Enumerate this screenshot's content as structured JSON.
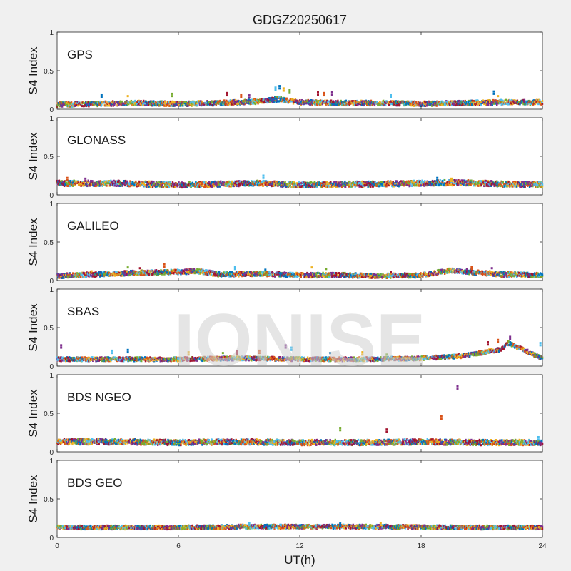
{
  "figure": {
    "title": "GDGZ20250617",
    "xlabel": "UT(h)",
    "watermark": "IONISE"
  },
  "chart_data": {
    "type": "scatter",
    "xlim": [
      0,
      24
    ],
    "ylim": [
      0,
      1
    ],
    "x_ticks": [
      "0",
      "6",
      "12",
      "18",
      "24"
    ],
    "y_ticks": [
      "0",
      "0.5",
      "1"
    ],
    "ylabel": "S4 Index",
    "grid": false,
    "legend": "none",
    "series_colors": [
      "#0072bd",
      "#d95319",
      "#edb120",
      "#7e2f8e",
      "#77ac30",
      "#4dbeee",
      "#a2142f"
    ],
    "panels": [
      {
        "label": "GPS",
        "baseline": [
          [
            0,
            0.06
          ],
          [
            2,
            0.07
          ],
          [
            4,
            0.08
          ],
          [
            6,
            0.07
          ],
          [
            8,
            0.08
          ],
          [
            10,
            0.1
          ],
          [
            11,
            0.13
          ],
          [
            12,
            0.09
          ],
          [
            14,
            0.08
          ],
          [
            16,
            0.08
          ],
          [
            18,
            0.07
          ],
          [
            20,
            0.08
          ],
          [
            22,
            0.09
          ],
          [
            24,
            0.09
          ]
        ],
        "spread": 0.03,
        "spikes": [
          [
            2.2,
            0.19
          ],
          [
            3.5,
            0.17
          ],
          [
            5.7,
            0.2
          ],
          [
            8.4,
            0.21
          ],
          [
            9.1,
            0.19
          ],
          [
            9.5,
            0.18
          ],
          [
            10.8,
            0.28
          ],
          [
            11.0,
            0.3
          ],
          [
            11.2,
            0.27
          ],
          [
            11.5,
            0.25
          ],
          [
            12.9,
            0.22
          ],
          [
            13.2,
            0.21
          ],
          [
            13.6,
            0.22
          ],
          [
            16.5,
            0.19
          ],
          [
            21.6,
            0.23
          ],
          [
            21.8,
            0.17
          ]
        ]
      },
      {
        "label": "GLONASS",
        "baseline": [
          [
            0,
            0.15
          ],
          [
            3,
            0.15
          ],
          [
            6,
            0.13
          ],
          [
            8,
            0.14
          ],
          [
            10,
            0.15
          ],
          [
            12,
            0.13
          ],
          [
            15,
            0.14
          ],
          [
            18,
            0.15
          ],
          [
            20,
            0.16
          ],
          [
            22,
            0.14
          ],
          [
            24,
            0.13
          ]
        ],
        "spread": 0.035,
        "spikes": [
          [
            0.5,
            0.22
          ],
          [
            1.4,
            0.21
          ],
          [
            10.2,
            0.25
          ],
          [
            18.8,
            0.22
          ],
          [
            19.5,
            0.21
          ]
        ]
      },
      {
        "label": "GALILEO",
        "baseline": [
          [
            0,
            0.06
          ],
          [
            2,
            0.08
          ],
          [
            4,
            0.1
          ],
          [
            6,
            0.11
          ],
          [
            7,
            0.12
          ],
          [
            8,
            0.08
          ],
          [
            10,
            0.09
          ],
          [
            12,
            0.07
          ],
          [
            14,
            0.07
          ],
          [
            16,
            0.06
          ],
          [
            18,
            0.07
          ],
          [
            19.5,
            0.13
          ],
          [
            21,
            0.1
          ],
          [
            22,
            0.08
          ],
          [
            24,
            0.07
          ]
        ],
        "spread": 0.03,
        "spikes": [
          [
            1.7,
            0.12
          ],
          [
            3.5,
            0.17
          ],
          [
            4.1,
            0.16
          ],
          [
            5.3,
            0.21
          ],
          [
            6.6,
            0.15
          ],
          [
            8.8,
            0.18
          ],
          [
            10.3,
            0.14
          ],
          [
            12.6,
            0.17
          ],
          [
            13.3,
            0.15
          ],
          [
            16.5,
            0.11
          ],
          [
            20.5,
            0.18
          ],
          [
            21.5,
            0.16
          ]
        ]
      },
      {
        "label": "SBAS",
        "baseline": [
          [
            0,
            0.09
          ],
          [
            3,
            0.09
          ],
          [
            6,
            0.09
          ],
          [
            9,
            0.1
          ],
          [
            12,
            0.09
          ],
          [
            15,
            0.09
          ],
          [
            18,
            0.1
          ],
          [
            20,
            0.13
          ],
          [
            22,
            0.22
          ],
          [
            22.3,
            0.3
          ],
          [
            24,
            0.1
          ]
        ],
        "spread": 0.025,
        "spikes": [
          [
            0.2,
            0.27
          ],
          [
            2.7,
            0.2
          ],
          [
            3.5,
            0.21
          ],
          [
            6.5,
            0.18
          ],
          [
            8.2,
            0.17
          ],
          [
            8.9,
            0.19
          ],
          [
            10.0,
            0.2
          ],
          [
            11.3,
            0.27
          ],
          [
            11.6,
            0.24
          ],
          [
            13.5,
            0.17
          ],
          [
            15.1,
            0.18
          ],
          [
            16.3,
            0.15
          ],
          [
            21.3,
            0.31
          ],
          [
            21.8,
            0.34
          ],
          [
            22.4,
            0.38
          ],
          [
            23.9,
            0.3
          ]
        ]
      },
      {
        "label": "BDS NGEO",
        "baseline": [
          [
            0,
            0.13
          ],
          [
            3,
            0.13
          ],
          [
            6,
            0.12
          ],
          [
            9,
            0.13
          ],
          [
            12,
            0.12
          ],
          [
            15,
            0.12
          ],
          [
            18,
            0.13
          ],
          [
            21,
            0.12
          ],
          [
            24,
            0.12
          ]
        ],
        "spread": 0.035,
        "spikes": [
          [
            14.0,
            0.31
          ],
          [
            16.3,
            0.29
          ],
          [
            19.0,
            0.46
          ],
          [
            19.8,
            0.85
          ],
          [
            23.8,
            0.19
          ]
        ]
      },
      {
        "label": "BDS GEO",
        "baseline": [
          [
            0,
            0.13
          ],
          [
            6,
            0.13
          ],
          [
            9,
            0.14
          ],
          [
            12,
            0.14
          ],
          [
            16,
            0.14
          ],
          [
            20,
            0.13
          ],
          [
            24,
            0.13
          ]
        ],
        "spread": 0.025,
        "spikes": [
          [
            9.5,
            0.19
          ],
          [
            14.0,
            0.18
          ],
          [
            16.0,
            0.19
          ]
        ]
      }
    ]
  }
}
